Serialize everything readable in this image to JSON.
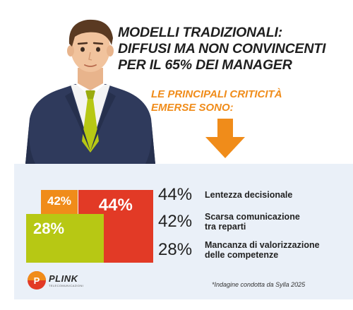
{
  "headline": {
    "lines": [
      "MODELLI TRADIZIONALI:",
      "DIFFUSI MA NON CONVINCENTI",
      "PER IL 65% DEI MANAGER"
    ]
  },
  "subtitle": {
    "lines": [
      "LE PRINCIPALI CRITICITÀ",
      "EMERSE SONO:"
    ]
  },
  "chart_data": {
    "type": "bar",
    "categories": [
      "Lentezza decisionale",
      "Scarsa comunicazione tra reparti",
      "Mancanza di valorizzazione delle competenze"
    ],
    "values": [
      44,
      42,
      28
    ],
    "unit": "%",
    "labels": [
      "44%",
      "42%",
      "28%"
    ]
  },
  "legend": [
    {
      "pct": "44%",
      "lines": [
        "Lentezza decisionale"
      ]
    },
    {
      "pct": "42%",
      "lines": [
        "Scarsa comunicazione",
        "tra reparti"
      ]
    },
    {
      "pct": "28%",
      "lines": [
        "Mancanza di valorizzazione",
        "delle competenze"
      ]
    }
  ],
  "logo": {
    "name": "PLINK",
    "sub": "TELECOMUNICAZIONI"
  },
  "note": "*Indagine condotta da Sylla 2025",
  "colors": {
    "orange": "#f08c1a",
    "red": "#e23a26",
    "green": "#b7c814",
    "panel": "#eaf0f8"
  }
}
